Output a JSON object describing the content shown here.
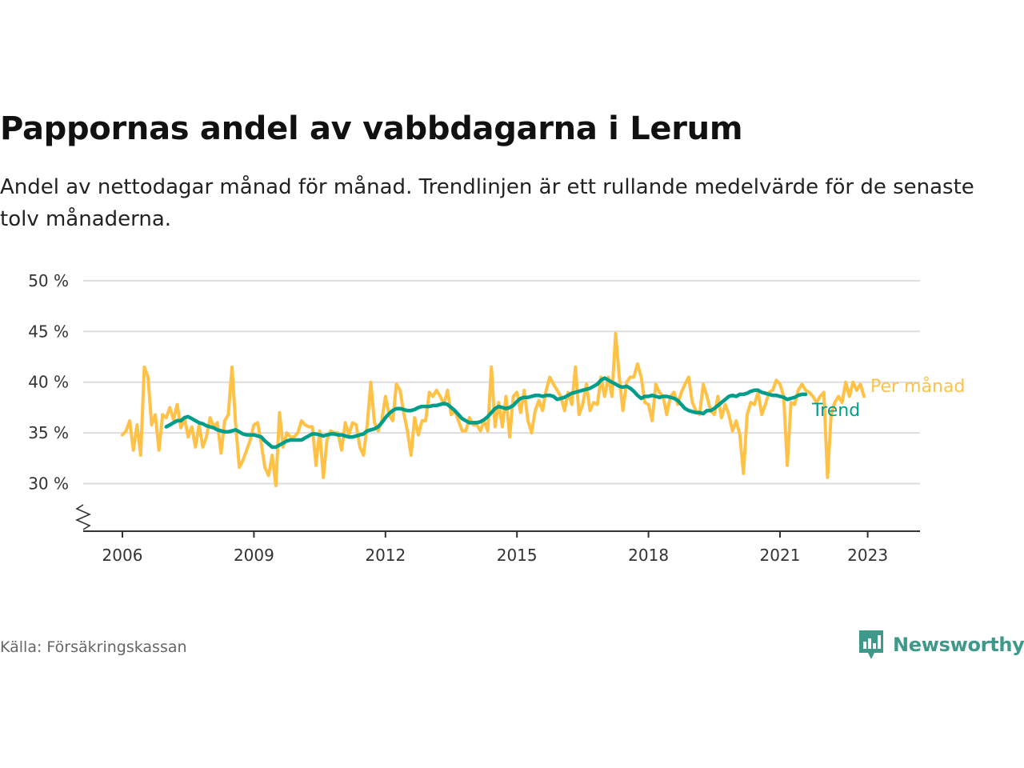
{
  "title": "Pappornas andel av vabbdagarna i Lerum",
  "subtitle": "Andel av nettodagar månad för månad. Trendlinjen är ett rullande medelvärde för de senaste tolv månaderna.",
  "source": "Källa: Försäkringskassan",
  "brand": "Newsworthy",
  "colors": {
    "monthly": "#ffc247",
    "trend": "#009d8b",
    "brand": "#3d9a8b",
    "grid": "#dddddd",
    "axis": "#333333"
  },
  "chart_data": {
    "type": "line",
    "title": "Pappornas andel av vabbdagarna i Lerum",
    "ylim": [
      25,
      50
    ],
    "yticks": [
      30,
      35,
      40,
      45,
      50
    ],
    "ytick_labels": [
      "30 %",
      "35 %",
      "40 %",
      "45 %",
      "50 %"
    ],
    "xticks": [
      2006,
      2009,
      2012,
      2015,
      2018,
      2021,
      2023
    ],
    "xtick_labels": [
      "2006",
      "2009",
      "2012",
      "2015",
      "2018",
      "2021",
      "2023"
    ],
    "y_axis_break": true,
    "grid": true,
    "legend": "end-of-line labels",
    "x_start": "2006-01",
    "series": [
      {
        "name": "Per månad",
        "values": [
          34.8,
          35.2,
          36.2,
          33.3,
          35.8,
          32.8,
          41.5,
          40.5,
          35.8,
          36.8,
          33.3,
          36.8,
          36.5,
          37.5,
          36.3,
          37.8,
          35.5,
          36.5,
          34.6,
          35.6,
          33.6,
          35.8,
          33.6,
          34.6,
          36.5,
          35.6,
          36.0,
          33.0,
          36.2,
          36.8,
          41.5,
          35.8,
          31.6,
          32.3,
          33.3,
          34.3,
          35.8,
          36.0,
          34.0,
          31.6,
          30.8,
          32.8,
          29.8,
          37.0,
          33.6,
          35.0,
          34.6,
          34.6,
          35.0,
          36.2,
          35.8,
          35.6,
          35.6,
          31.8,
          35.2,
          30.6,
          34.3,
          35.2,
          35.0,
          35.0,
          33.3,
          36.0,
          34.8,
          36.0,
          35.8,
          33.6,
          32.8,
          35.8,
          40.0,
          36.0,
          35.2,
          36.2,
          38.6,
          36.8,
          36.2,
          39.8,
          39.2,
          37.0,
          35.2,
          32.8,
          36.5,
          34.8,
          36.2,
          36.2,
          39.0,
          38.6,
          39.2,
          38.6,
          37.8,
          39.2,
          36.8,
          37.2,
          36.2,
          35.2,
          35.2,
          36.5,
          35.8,
          35.8,
          35.2,
          36.2,
          35.2,
          41.5,
          35.6,
          38.0,
          35.6,
          38.6,
          34.6,
          38.6,
          39.0,
          37.0,
          39.2,
          36.2,
          35.0,
          37.2,
          38.2,
          37.2,
          39.2,
          40.5,
          39.8,
          39.2,
          38.6,
          37.2,
          39.0,
          37.8,
          41.5,
          36.8,
          37.8,
          39.8,
          37.2,
          38.0,
          37.8,
          40.5,
          38.6,
          40.5,
          38.6,
          44.8,
          40.5,
          37.2,
          40.0,
          40.5,
          40.5,
          41.8,
          40.5,
          38.0,
          37.8,
          36.2,
          39.8,
          39.0,
          38.6,
          36.8,
          38.6,
          39.0,
          37.8,
          39.0,
          39.8,
          40.5,
          38.0,
          37.2,
          36.8,
          39.8,
          38.6,
          37.2,
          36.8,
          38.6,
          36.5,
          37.8,
          36.8,
          35.2,
          36.2,
          34.8,
          31.0,
          36.8,
          38.0,
          37.8,
          39.0,
          36.8,
          37.8,
          39.0,
          39.2,
          40.2,
          39.8,
          38.6,
          31.8,
          38.0,
          37.8,
          39.2,
          39.8,
          39.2,
          39.0,
          38.6,
          38.0,
          38.6,
          39.0,
          30.6,
          36.8,
          38.0,
          38.6,
          38.0,
          40.0,
          38.6,
          40.0,
          39.2,
          39.8,
          38.6
        ]
      },
      {
        "name": "Trend",
        "start": "2007-01",
        "values": [
          35.6,
          35.8,
          36.0,
          36.2,
          36.2,
          36.5,
          36.6,
          36.4,
          36.2,
          36.0,
          35.9,
          35.7,
          35.6,
          35.5,
          35.3,
          35.2,
          35.1,
          35.1,
          35.2,
          35.3,
          35.1,
          34.9,
          34.8,
          34.8,
          34.8,
          34.7,
          34.6,
          34.2,
          33.9,
          33.6,
          33.6,
          33.8,
          34.0,
          34.2,
          34.3,
          34.3,
          34.3,
          34.3,
          34.5,
          34.7,
          34.9,
          34.9,
          34.8,
          34.7,
          34.8,
          34.9,
          34.9,
          34.8,
          34.8,
          34.7,
          34.6,
          34.6,
          34.7,
          34.8,
          34.9,
          35.2,
          35.3,
          35.4,
          35.6,
          36.0,
          36.5,
          36.9,
          37.2,
          37.4,
          37.4,
          37.3,
          37.2,
          37.2,
          37.3,
          37.5,
          37.6,
          37.6,
          37.6,
          37.7,
          37.7,
          37.8,
          37.9,
          37.8,
          37.5,
          37.2,
          36.8,
          36.4,
          36.2,
          36.0,
          36.0,
          36.0,
          36.1,
          36.3,
          36.6,
          37.0,
          37.4,
          37.6,
          37.5,
          37.4,
          37.5,
          37.7,
          38.1,
          38.4,
          38.5,
          38.5,
          38.6,
          38.7,
          38.7,
          38.6,
          38.7,
          38.7,
          38.6,
          38.3,
          38.4,
          38.5,
          38.7,
          38.9,
          39.0,
          39.1,
          39.2,
          39.3,
          39.4,
          39.6,
          39.8,
          40.2,
          40.4,
          40.2,
          40.0,
          39.8,
          39.6,
          39.5,
          39.6,
          39.4,
          39.1,
          38.7,
          38.4,
          38.6,
          38.6,
          38.7,
          38.6,
          38.5,
          38.6,
          38.6,
          38.5,
          38.4,
          38.2,
          37.8,
          37.4,
          37.2,
          37.1,
          37.0,
          37.0,
          36.9,
          37.2,
          37.2,
          37.4,
          37.7,
          38.0,
          38.3,
          38.6,
          38.7,
          38.6,
          38.8,
          38.8,
          38.9,
          39.1,
          39.2,
          39.2,
          39.0,
          38.9,
          38.8,
          38.7,
          38.7,
          38.6,
          38.5,
          38.3,
          38.4,
          38.5,
          38.7,
          38.8,
          38.8
        ]
      }
    ]
  }
}
